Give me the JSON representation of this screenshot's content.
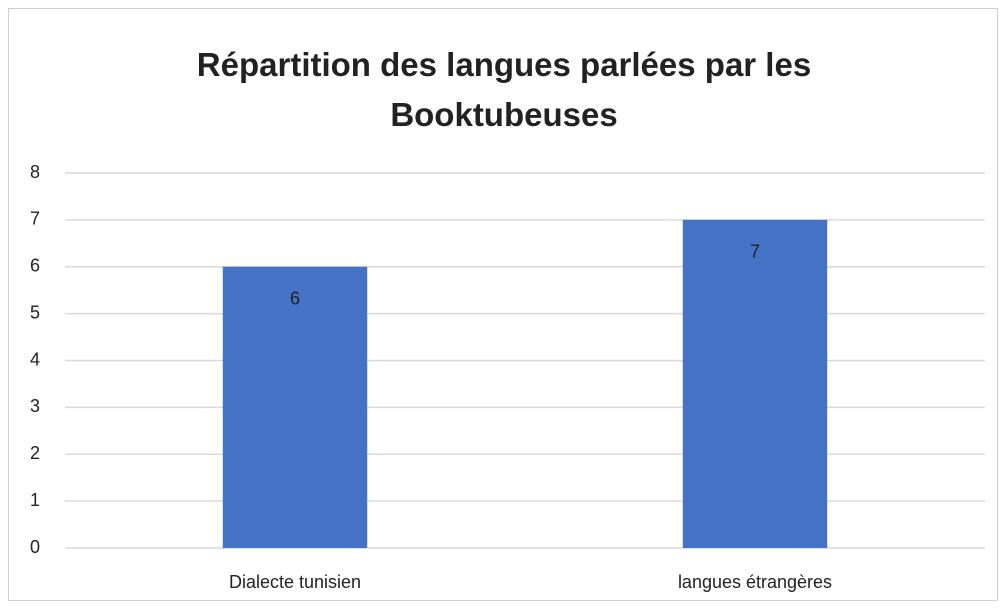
{
  "chart_data": {
    "type": "bar",
    "title": "Répartition des langues parlées par les Booktubeuses",
    "categories": [
      "Dialecte tunisien",
      "langues étrangères"
    ],
    "values": [
      6,
      7
    ],
    "color": "#4472c4",
    "ylim": [
      0,
      8
    ],
    "yticks": [
      0,
      1,
      2,
      3,
      4,
      5,
      6,
      7,
      8
    ],
    "grid": true
  }
}
